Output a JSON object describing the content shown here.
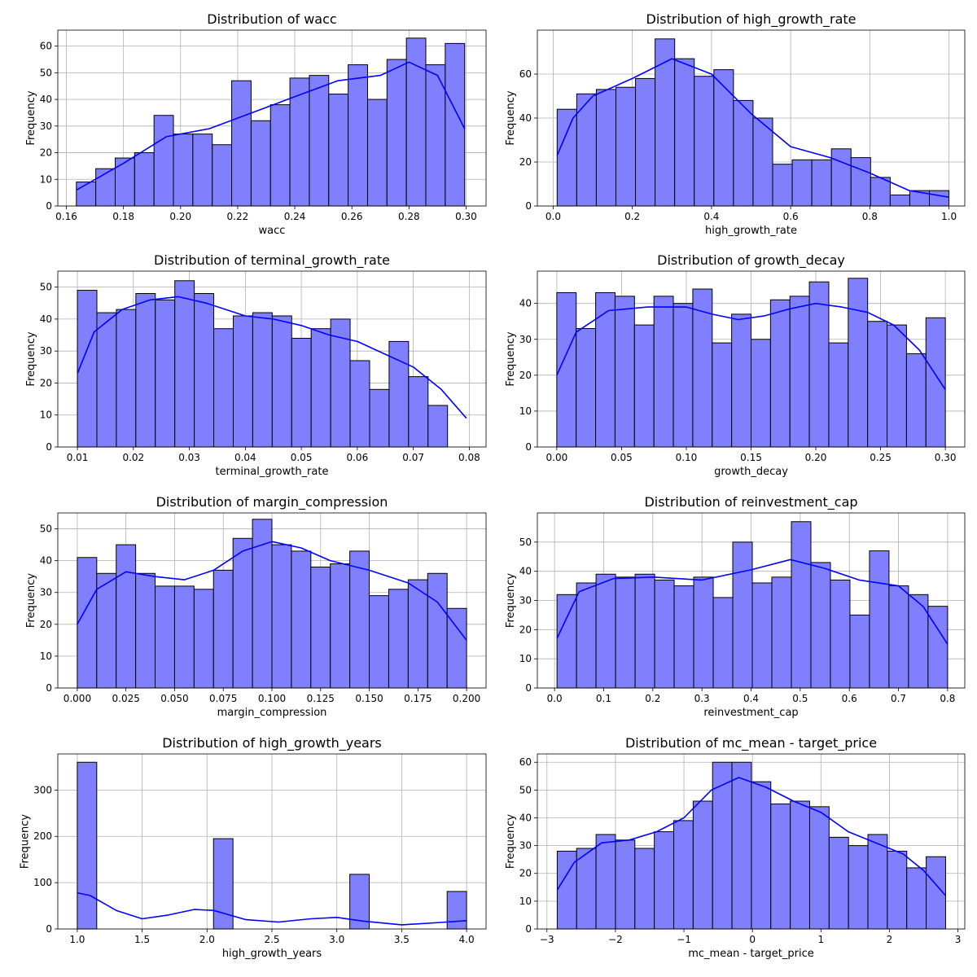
{
  "chart_data": [
    {
      "type": "histogram",
      "title": "Distribution of wacc",
      "xlabel": "wacc",
      "ylabel": "Frequency",
      "xlim": [
        0.157,
        0.307
      ],
      "ylim": [
        0,
        66
      ],
      "xticks": [
        0.16,
        0.18,
        0.2,
        0.22,
        0.24,
        0.26,
        0.28,
        0.3
      ],
      "xtick_labels": [
        "0.16",
        "0.18",
        "0.20",
        "0.22",
        "0.24",
        "0.26",
        "0.28",
        "0.30"
      ],
      "yticks": [
        0,
        10,
        20,
        30,
        40,
        50,
        60
      ],
      "ytick_labels": [
        "0",
        "10",
        "20",
        "30",
        "40",
        "50",
        "60"
      ],
      "bin_start": 0.1635,
      "bin_width": 0.0068,
      "counts": [
        9,
        14,
        18,
        20,
        34,
        27,
        27,
        23,
        47,
        32,
        38,
        48,
        49,
        42,
        53,
        40,
        55,
        63,
        53,
        61
      ],
      "kde": [
        [
          0.1635,
          6
        ],
        [
          0.18,
          16
        ],
        [
          0.195,
          26
        ],
        [
          0.21,
          29
        ],
        [
          0.225,
          35
        ],
        [
          0.24,
          41
        ],
        [
          0.255,
          47
        ],
        [
          0.27,
          49
        ],
        [
          0.28,
          54
        ],
        [
          0.29,
          49
        ],
        [
          0.2995,
          29
        ]
      ],
      "grid": true,
      "color": "#8080ff",
      "kde_color": "#0000ff"
    },
    {
      "type": "histogram",
      "title": "Distribution of high_growth_rate",
      "xlabel": "high_growth_rate",
      "ylabel": "Frequency",
      "xlim": [
        -0.04,
        1.04
      ],
      "ylim": [
        0,
        80
      ],
      "xticks": [
        0.0,
        0.2,
        0.4,
        0.6,
        0.8,
        1.0
      ],
      "xtick_labels": [
        "0.0",
        "0.2",
        "0.4",
        "0.6",
        "0.8",
        "1.0"
      ],
      "yticks": [
        0,
        20,
        40,
        60
      ],
      "ytick_labels": [
        "0",
        "20",
        "40",
        "60"
      ],
      "bin_start": 0.01,
      "bin_width": 0.0495,
      "counts": [
        44,
        51,
        53,
        54,
        58,
        76,
        67,
        59,
        62,
        48,
        40,
        19,
        21,
        21,
        26,
        22,
        13,
        5,
        7,
        7
      ],
      "kde": [
        [
          0.01,
          23
        ],
        [
          0.05,
          40
        ],
        [
          0.1,
          50
        ],
        [
          0.2,
          58
        ],
        [
          0.3,
          67
        ],
        [
          0.4,
          60
        ],
        [
          0.5,
          42
        ],
        [
          0.6,
          27
        ],
        [
          0.7,
          22
        ],
        [
          0.8,
          15
        ],
        [
          0.9,
          7
        ],
        [
          1.0,
          4
        ]
      ],
      "grid": true,
      "color": "#8080ff",
      "kde_color": "#0000ff"
    },
    {
      "type": "histogram",
      "title": "Distribution of terminal_growth_rate",
      "xlabel": "terminal_growth_rate",
      "ylabel": "Frequency",
      "xlim": [
        0.0065,
        0.083
      ],
      "ylim": [
        0,
        55
      ],
      "xticks": [
        0.01,
        0.02,
        0.03,
        0.04,
        0.05,
        0.06,
        0.07,
        0.08
      ],
      "xtick_labels": [
        "0.01",
        "0.02",
        "0.03",
        "0.04",
        "0.05",
        "0.06",
        "0.07",
        "0.08"
      ],
      "yticks": [
        0,
        10,
        20,
        30,
        40,
        50
      ],
      "ytick_labels": [
        "0",
        "10",
        "20",
        "30",
        "40",
        "50"
      ],
      "bin_start": 0.01,
      "bin_width": 0.00348,
      "counts": [
        49,
        42,
        43,
        48,
        46,
        52,
        48,
        37,
        41,
        42,
        41,
        34,
        37,
        40,
        27,
        18,
        33,
        22,
        13
      ],
      "kde": [
        [
          0.01,
          23
        ],
        [
          0.013,
          36
        ],
        [
          0.018,
          43
        ],
        [
          0.023,
          46
        ],
        [
          0.028,
          47
        ],
        [
          0.033,
          45
        ],
        [
          0.04,
          41
        ],
        [
          0.045,
          40
        ],
        [
          0.05,
          38
        ],
        [
          0.055,
          35
        ],
        [
          0.06,
          33
        ],
        [
          0.065,
          29
        ],
        [
          0.07,
          25
        ],
        [
          0.075,
          18
        ],
        [
          0.0795,
          9
        ]
      ],
      "grid": true,
      "color": "#8080ff",
      "kde_color": "#0000ff"
    },
    {
      "type": "histogram",
      "title": "Distribution of growth_decay",
      "xlabel": "growth_decay",
      "ylabel": "Frequency",
      "xlim": [
        -0.015,
        0.315
      ],
      "ylim": [
        0,
        49
      ],
      "xticks": [
        0.0,
        0.05,
        0.1,
        0.15,
        0.2,
        0.25,
        0.3
      ],
      "xtick_labels": [
        "0.00",
        "0.05",
        "0.10",
        "0.15",
        "0.20",
        "0.25",
        "0.30"
      ],
      "yticks": [
        0,
        10,
        20,
        30,
        40
      ],
      "ytick_labels": [
        "0",
        "10",
        "20",
        "30",
        "40"
      ],
      "bin_start": 0.0,
      "bin_width": 0.015,
      "counts": [
        43,
        33,
        43,
        42,
        34,
        42,
        40,
        44,
        29,
        37,
        30,
        41,
        42,
        46,
        29,
        47,
        35,
        34,
        26,
        36
      ],
      "kde": [
        [
          0.0,
          20
        ],
        [
          0.015,
          32
        ],
        [
          0.04,
          38
        ],
        [
          0.07,
          39
        ],
        [
          0.1,
          39
        ],
        [
          0.12,
          37
        ],
        [
          0.14,
          35.5
        ],
        [
          0.16,
          36.5
        ],
        [
          0.18,
          38.5
        ],
        [
          0.2,
          40
        ],
        [
          0.22,
          39
        ],
        [
          0.24,
          37.5
        ],
        [
          0.26,
          34
        ],
        [
          0.28,
          27
        ],
        [
          0.3,
          16
        ]
      ],
      "grid": true,
      "color": "#8080ff",
      "kde_color": "#0000ff"
    },
    {
      "type": "histogram",
      "title": "Distribution of margin_compression",
      "xlabel": "margin_compression",
      "ylabel": "Frequency",
      "xlim": [
        -0.01,
        0.21
      ],
      "ylim": [
        0,
        55
      ],
      "xticks": [
        0.0,
        0.025,
        0.05,
        0.075,
        0.1,
        0.125,
        0.15,
        0.175,
        0.2
      ],
      "xtick_labels": [
        "0.000",
        "0.025",
        "0.050",
        "0.075",
        "0.100",
        "0.125",
        "0.150",
        "0.175",
        "0.200"
      ],
      "yticks": [
        0,
        10,
        20,
        30,
        40,
        50
      ],
      "ytick_labels": [
        "0",
        "10",
        "20",
        "30",
        "40",
        "50"
      ],
      "bin_start": 0.0,
      "bin_width": 0.01,
      "counts": [
        41,
        36,
        45,
        36,
        32,
        32,
        31,
        37,
        47,
        53,
        45,
        43,
        38,
        39,
        43,
        29,
        31,
        34,
        36,
        25
      ],
      "kde": [
        [
          0.0,
          20
        ],
        [
          0.01,
          31
        ],
        [
          0.025,
          36.5
        ],
        [
          0.04,
          35
        ],
        [
          0.055,
          34
        ],
        [
          0.07,
          37
        ],
        [
          0.085,
          43
        ],
        [
          0.1,
          46
        ],
        [
          0.115,
          44
        ],
        [
          0.13,
          40
        ],
        [
          0.15,
          37
        ],
        [
          0.17,
          33
        ],
        [
          0.185,
          27
        ],
        [
          0.2,
          15
        ]
      ],
      "grid": true,
      "color": "#8080ff",
      "kde_color": "#0000ff"
    },
    {
      "type": "histogram",
      "title": "Distribution of reinvestment_cap",
      "xlabel": "reinvestment_cap",
      "ylabel": "Frequency",
      "xlim": [
        -0.035,
        0.835
      ],
      "ylim": [
        0,
        60
      ],
      "xticks": [
        0.0,
        0.1,
        0.2,
        0.3,
        0.4,
        0.5,
        0.6,
        0.7,
        0.8
      ],
      "xtick_labels": [
        "0.0",
        "0.1",
        "0.2",
        "0.3",
        "0.4",
        "0.5",
        "0.6",
        "0.7",
        "0.8"
      ],
      "yticks": [
        0,
        10,
        20,
        30,
        40,
        50
      ],
      "ytick_labels": [
        "0",
        "10",
        "20",
        "30",
        "40",
        "50"
      ],
      "bin_start": 0.005,
      "bin_width": 0.03975,
      "counts": [
        32,
        36,
        39,
        38,
        39,
        37,
        35,
        38,
        31,
        50,
        36,
        38,
        57,
        43,
        37,
        25,
        47,
        35,
        32,
        28
      ],
      "kde": [
        [
          0.005,
          17
        ],
        [
          0.05,
          33
        ],
        [
          0.12,
          37.5
        ],
        [
          0.2,
          38
        ],
        [
          0.3,
          37
        ],
        [
          0.4,
          40.5
        ],
        [
          0.48,
          44
        ],
        [
          0.55,
          41
        ],
        [
          0.62,
          37
        ],
        [
          0.7,
          35
        ],
        [
          0.75,
          28
        ],
        [
          0.8,
          15
        ]
      ],
      "grid": true,
      "color": "#8080ff",
      "kde_color": "#0000ff"
    },
    {
      "type": "histogram",
      "title": "Distribution of high_growth_years",
      "xlabel": "high_growth_years",
      "ylabel": "Frequency",
      "xlim": [
        0.85,
        4.15
      ],
      "ylim": [
        0,
        378
      ],
      "xticks": [
        1.0,
        1.5,
        2.0,
        2.5,
        3.0,
        3.5,
        4.0
      ],
      "xtick_labels": [
        "1.0",
        "1.5",
        "2.0",
        "2.5",
        "3.0",
        "3.5",
        "4.0"
      ],
      "yticks": [
        0,
        100,
        200,
        300
      ],
      "ytick_labels": [
        "0",
        "100",
        "200",
        "300"
      ],
      "bin_start": 1.0,
      "bin_width": 0.15,
      "counts": [
        360,
        0,
        0,
        0,
        0,
        0,
        0,
        195,
        0,
        0,
        0,
        0,
        0,
        0,
        118,
        0,
        0,
        0,
        0,
        81
      ],
      "kde": [
        [
          1.0,
          78
        ],
        [
          1.1,
          72
        ],
        [
          1.3,
          40
        ],
        [
          1.5,
          22
        ],
        [
          1.7,
          30
        ],
        [
          1.9,
          42
        ],
        [
          2.05,
          40
        ],
        [
          2.3,
          20
        ],
        [
          2.55,
          15
        ],
        [
          2.8,
          22
        ],
        [
          3.0,
          25
        ],
        [
          3.2,
          17
        ],
        [
          3.5,
          9
        ],
        [
          3.8,
          14
        ],
        [
          4.0,
          18
        ]
      ],
      "grid": true,
      "color": "#8080ff",
      "kde_color": "#0000ff"
    },
    {
      "type": "histogram",
      "title": "Distribution of mc_mean - target_price",
      "xlabel": "mc_mean - target_price",
      "ylabel": "Frequency",
      "xlim": [
        -3.14,
        3.1
      ],
      "ylim": [
        0,
        63
      ],
      "xticks": [
        -3,
        -2,
        -1,
        0,
        1,
        2,
        3
      ],
      "xtick_labels": [
        "−3",
        "−2",
        "−1",
        "0",
        "1",
        "2",
        "3"
      ],
      "yticks": [
        0,
        10,
        20,
        30,
        40,
        50,
        60
      ],
      "ytick_labels": [
        "0",
        "10",
        "20",
        "30",
        "40",
        "50",
        "60"
      ],
      "bin_start": -2.85,
      "bin_width": 0.2835,
      "counts": [
        28,
        29,
        34,
        32,
        29,
        35,
        39,
        46,
        60,
        60,
        53,
        45,
        46,
        44,
        33,
        30,
        34,
        28,
        22,
        26
      ],
      "kde": [
        [
          -2.85,
          14
        ],
        [
          -2.6,
          24
        ],
        [
          -2.2,
          31
        ],
        [
          -1.8,
          32
        ],
        [
          -1.4,
          35
        ],
        [
          -1.0,
          40
        ],
        [
          -0.6,
          50
        ],
        [
          -0.2,
          54.5
        ],
        [
          0.2,
          51
        ],
        [
          0.6,
          46
        ],
        [
          1.0,
          42
        ],
        [
          1.4,
          35
        ],
        [
          1.8,
          31
        ],
        [
          2.2,
          27
        ],
        [
          2.5,
          21
        ],
        [
          2.82,
          12
        ]
      ],
      "grid": true,
      "color": "#8080ff",
      "kde_color": "#0000ff"
    }
  ]
}
